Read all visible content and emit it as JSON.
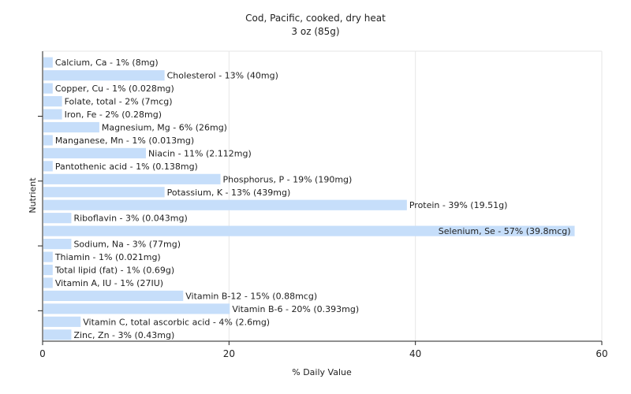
{
  "chart_data": {
    "type": "bar",
    "orientation": "horizontal",
    "title": "Cod, Pacific, cooked, dry heat",
    "subtitle": "3 oz (85g)",
    "xlabel": "% Daily Value",
    "ylabel": "Nutrient",
    "xlim": [
      0,
      60
    ],
    "xticks": [
      0,
      20,
      40,
      60
    ],
    "grid": true,
    "bar_color": "#c6defa",
    "categories": [
      "Calcium, Ca",
      "Cholesterol",
      "Copper, Cu",
      "Folate, total",
      "Iron, Fe",
      "Magnesium, Mg",
      "Manganese, Mn",
      "Niacin",
      "Pantothenic acid",
      "Phosphorus, P",
      "Potassium, K",
      "Protein",
      "Riboflavin",
      "Selenium, Se",
      "Sodium, Na",
      "Thiamin",
      "Total lipid (fat)",
      "Vitamin A, IU",
      "Vitamin B-12",
      "Vitamin B-6",
      "Vitamin C, total ascorbic acid",
      "Zinc, Zn"
    ],
    "values": [
      1,
      13,
      1,
      2,
      2,
      6,
      1,
      11,
      1,
      19,
      13,
      39,
      3,
      57,
      3,
      1,
      1,
      1,
      15,
      20,
      4,
      3
    ],
    "labels": [
      "Calcium, Ca - 1% (8mg)",
      "Cholesterol - 13% (40mg)",
      "Copper, Cu - 1% (0.028mg)",
      "Folate, total - 2% (7mcg)",
      "Iron, Fe - 2% (0.28mg)",
      "Magnesium, Mg - 6% (26mg)",
      "Manganese, Mn - 1% (0.013mg)",
      "Niacin - 11% (2.112mg)",
      "Pantothenic acid - 1% (0.138mg)",
      "Phosphorus, P - 19% (190mg)",
      "Potassium, K - 13% (439mg)",
      "Protein - 39% (19.51g)",
      "Riboflavin - 3% (0.043mg)",
      "Selenium, Se - 57% (39.8mcg)",
      "Sodium, Na - 3% (77mg)",
      "Thiamin - 1% (0.021mg)",
      "Total lipid (fat) - 1% (0.69g)",
      "Vitamin A, IU - 1% (27IU)",
      "Vitamin B-12 - 15% (0.88mcg)",
      "Vitamin B-6 - 20% (0.393mg)",
      "Vitamin C, total ascorbic acid - 4% (2.6mg)",
      "Zinc, Zn - 3% (0.43mg)"
    ]
  }
}
